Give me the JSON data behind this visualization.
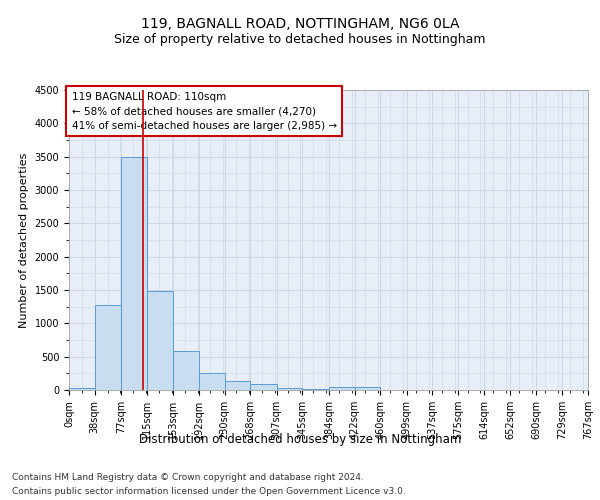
{
  "title1": "119, BAGNALL ROAD, NOTTINGHAM, NG6 0LA",
  "title2": "Size of property relative to detached houses in Nottingham",
  "xlabel": "Distribution of detached houses by size in Nottingham",
  "ylabel": "Number of detached properties",
  "bin_edges": [
    0,
    38,
    77,
    115,
    153,
    192,
    230,
    268,
    307,
    345,
    384,
    422,
    460,
    499,
    537,
    575,
    614,
    652,
    690,
    729,
    767
  ],
  "bar_heights": [
    25,
    1270,
    3500,
    1480,
    580,
    250,
    140,
    90,
    30,
    15,
    50,
    40,
    0,
    0,
    0,
    0,
    0,
    0,
    0,
    0
  ],
  "bar_color": "#c8ddef",
  "bar_edge_color": "#5b9bd5",
  "grid_color": "#c8d4e4",
  "bg_color": "#e8eef8",
  "vline_x": 110,
  "vline_color": "#cc0000",
  "annotation_line1": "119 BAGNALL ROAD: 110sqm",
  "annotation_line2": "← 58% of detached houses are smaller (4,270)",
  "annotation_line3": "41% of semi-detached houses are larger (2,985) →",
  "annotation_box_color": "#cc0000",
  "ylim": [
    0,
    4500
  ],
  "yticks": [
    0,
    500,
    1000,
    1500,
    2000,
    2500,
    3000,
    3500,
    4000,
    4500
  ],
  "footer1": "Contains HM Land Registry data © Crown copyright and database right 2024.",
  "footer2": "Contains public sector information licensed under the Open Government Licence v3.0.",
  "title1_fontsize": 10,
  "title2_fontsize": 9,
  "xlabel_fontsize": 8.5,
  "ylabel_fontsize": 8,
  "tick_fontsize": 7,
  "footer_fontsize": 6.5,
  "annotation_fontsize": 7.5
}
